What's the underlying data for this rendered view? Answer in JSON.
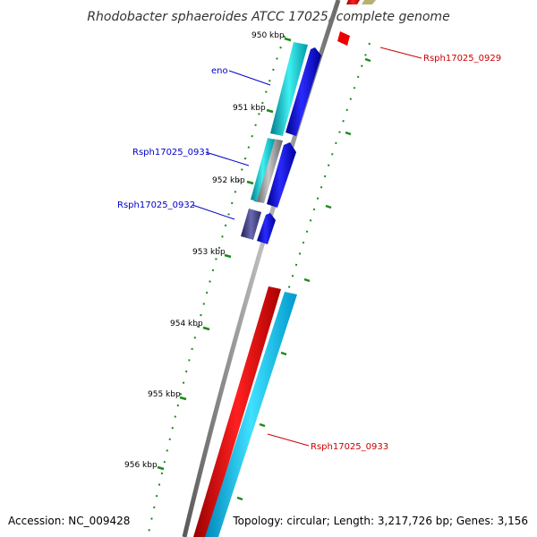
{
  "title": "Rhodobacter sphaeroides ATCC 17025, complete genome",
  "footer": {
    "accession": "Accession: NC_009428",
    "topology": "Topology: circular; Length: 3,217,726 bp; Genes: 3,156"
  },
  "tick_labels": [
    "950 kbp",
    "951 kbp",
    "952 kbp",
    "953 kbp",
    "954 kbp",
    "955 kbp",
    "956 kbp"
  ],
  "genes": [
    {
      "label": "eno",
      "color": "#0000cc"
    },
    {
      "label": "Rsph17025_0931",
      "color": "#0000cc"
    },
    {
      "label": "Rsph17025_0932",
      "color": "#0000cc"
    },
    {
      "label": "Rsph17025_0929",
      "color": "#cc0000"
    },
    {
      "label": "Rsph17025_0933",
      "color": "#cc0000"
    }
  ],
  "colors": {
    "backbone": "#8a8a8a",
    "forward": "#0000ee",
    "reverse": "#ee0000",
    "cyan": "#00bcd4",
    "light_blue": "#1ec8f0",
    "dark_purple": "#3a3a80",
    "tick": "#1a8a1a",
    "olive": "#b8b070"
  }
}
